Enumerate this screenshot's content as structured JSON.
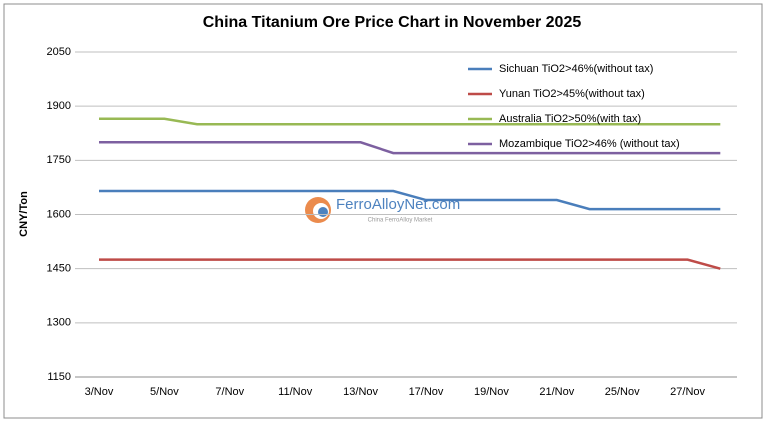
{
  "chart_data": {
    "type": "line",
    "title": "China Titanium Ore Price Chart in November 2025",
    "y_label": "CNY/Ton",
    "categories": [
      "3/Nov",
      null,
      "5/Nov",
      null,
      "7/Nov",
      null,
      "11/Nov",
      null,
      "13/Nov",
      null,
      "17/Nov",
      null,
      "19/Nov",
      null,
      "21/Nov",
      null,
      "25/Nov",
      null,
      "27/Nov",
      null
    ],
    "series": [
      {
        "name": "Sichuan TiO2>46%(without tax)",
        "color": "#4a7ebb",
        "values": [
          1665,
          1665,
          1665,
          1665,
          1665,
          1665,
          1665,
          1665,
          1665,
          1665,
          1640,
          1640,
          1640,
          1640,
          1640,
          1615,
          1615,
          1615,
          1615,
          1615
        ]
      },
      {
        "name": "Yunan TiO2>45%(without tax)",
        "color": "#be4b48",
        "values": [
          1475,
          1475,
          1475,
          1475,
          1475,
          1475,
          1475,
          1475,
          1475,
          1475,
          1475,
          1475,
          1475,
          1475,
          1475,
          1475,
          1475,
          1475,
          1475,
          1450
        ]
      },
      {
        "name": "Australia TiO2>50%(with tax)",
        "color": "#98b954",
        "values": [
          1865,
          1865,
          1865,
          1850,
          1850,
          1850,
          1850,
          1850,
          1850,
          1850,
          1850,
          1850,
          1850,
          1850,
          1850,
          1850,
          1850,
          1850,
          1850,
          1850
        ]
      },
      {
        "name": "Mozambique TiO2>46% (without tax)",
        "color": "#7d60a0",
        "values": [
          1800,
          1800,
          1800,
          1800,
          1800,
          1800,
          1800,
          1800,
          1800,
          1770,
          1770,
          1770,
          1770,
          1770,
          1770,
          1770,
          1770,
          1770,
          1770,
          1770
        ]
      }
    ],
    "ylim": [
      1150,
      2050
    ],
    "yticks": [
      1150,
      1300,
      1450,
      1600,
      1750,
      1900,
      2050
    ],
    "grid": true,
    "legend": "top-right",
    "watermark": {
      "name": "FerroAlloyNet.com",
      "subtitle": "China FerroAlloy Market"
    }
  }
}
